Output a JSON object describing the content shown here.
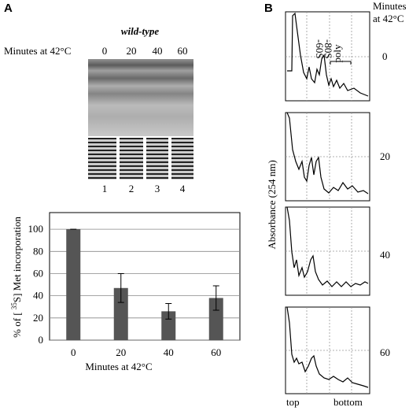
{
  "panels": {
    "a": "A",
    "b": "B"
  },
  "gel": {
    "strain": "wild-type",
    "time_label": "Minutes at 42°C",
    "times": [
      "0",
      "20",
      "40",
      "60"
    ],
    "lanes": [
      "1",
      "2",
      "3",
      "4"
    ]
  },
  "profiles": {
    "time_label": [
      "Minutes",
      "at 42°C"
    ],
    "times": [
      "0",
      "20",
      "40",
      "60"
    ],
    "peaks": [
      "-60S",
      "-80S"
    ],
    "poly": "poly",
    "ylabel": "Absorbance (254 nm)",
    "top": "top",
    "bottom": "bottom"
  },
  "chart_data": {
    "type": "bar",
    "categories": [
      "0",
      "20",
      "40",
      "60"
    ],
    "values": [
      100,
      47,
      26,
      38
    ],
    "errors": [
      0,
      13,
      7,
      11
    ],
    "color": "#555555",
    "ylim": [
      0,
      115
    ],
    "yticks": [
      0,
      20,
      40,
      60,
      80,
      100
    ],
    "grid": true,
    "xlabel": "Minutes at 42°C",
    "ylabel_parts": [
      "% of [ ",
      "35",
      "S] Met incorporation"
    ]
  }
}
